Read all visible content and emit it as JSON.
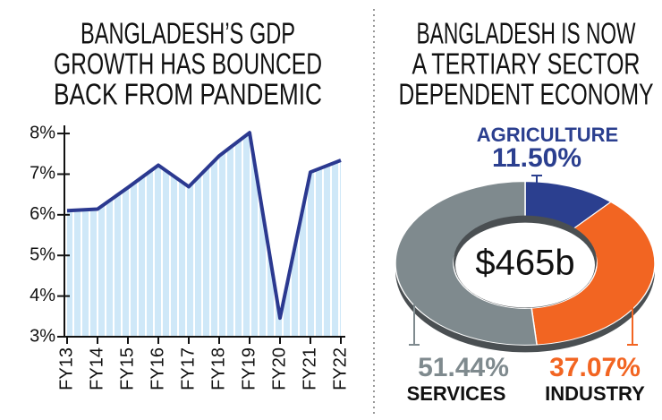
{
  "chart_data": [
    {
      "type": "line",
      "title": [
        "BANGLADESH’S GDP",
        "GROWTH HAS BOUNCED",
        "BACK FROM PANDEMIC"
      ],
      "categories": [
        "FY13",
        "FY14",
        "FY15",
        "FY16",
        "FY17",
        "FY18",
        "FY19",
        "FY20",
        "FY21",
        "FY22"
      ],
      "values": [
        6.1,
        6.14,
        6.67,
        7.22,
        6.69,
        7.45,
        8.02,
        3.46,
        7.05,
        7.34
      ],
      "color": "#2b3990",
      "fill_color": "#cfe8f8",
      "ylim": [
        3,
        8.2
      ],
      "yticks": [
        {
          "value": 3,
          "label": "3%"
        },
        {
          "value": 4,
          "label": "4%"
        },
        {
          "value": 5,
          "label": "5%"
        },
        {
          "value": 6,
          "label": "6%"
        },
        {
          "value": 7,
          "label": "7%"
        },
        {
          "value": 8,
          "label": "8%"
        }
      ]
    },
    {
      "type": "donut",
      "title": [
        "BANGLADESH IS NOW",
        "A TERTIARY SECTOR",
        "DEPENDENT ECONOMY"
      ],
      "center_label": "$465b",
      "categories": [
        "AGRICULTURE",
        "INDUSTRY",
        "SERVICES"
      ],
      "values": [
        11.5,
        37.07,
        51.44
      ],
      "value_labels": [
        "11.50%",
        "37.07%",
        "51.44%"
      ],
      "colors": [
        "#2b3f8f",
        "#f26522",
        "#7f8a8e"
      ]
    }
  ]
}
